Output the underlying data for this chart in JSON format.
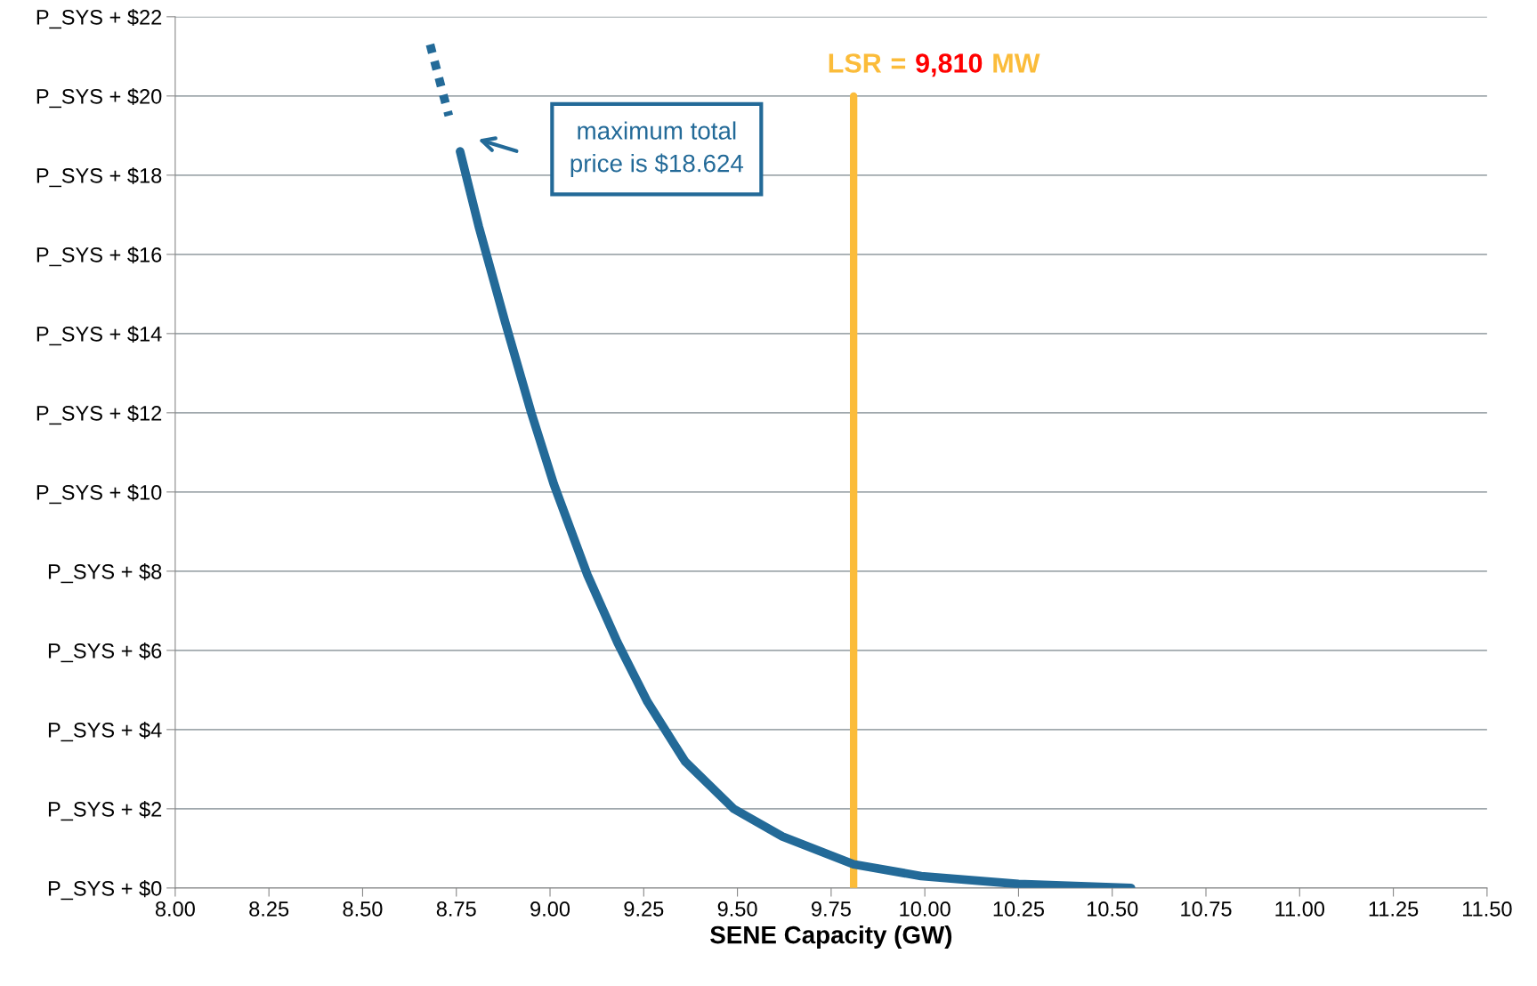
{
  "chart_data": {
    "type": "line",
    "xlabel": "SENE Capacity (GW)",
    "xlim": [
      8.0,
      11.5
    ],
    "xticks": [
      {
        "value": 8.0,
        "label": "8.00"
      },
      {
        "value": 8.25,
        "label": "8.25"
      },
      {
        "value": 8.5,
        "label": "8.50"
      },
      {
        "value": 8.75,
        "label": "8.75"
      },
      {
        "value": 9.0,
        "label": "9.00"
      },
      {
        "value": 9.25,
        "label": "9.25"
      },
      {
        "value": 9.5,
        "label": "9.50"
      },
      {
        "value": 9.75,
        "label": "9.75"
      },
      {
        "value": 10.0,
        "label": "10.00"
      },
      {
        "value": 10.25,
        "label": "10.25"
      },
      {
        "value": 10.5,
        "label": "10.50"
      },
      {
        "value": 10.75,
        "label": "10.75"
      },
      {
        "value": 11.0,
        "label": "11.00"
      },
      {
        "value": 11.25,
        "label": "11.25"
      },
      {
        "value": 11.5,
        "label": "11.50"
      }
    ],
    "ylim": [
      0,
      22
    ],
    "yticks": [
      {
        "value": 0,
        "label": "P_SYS + $0"
      },
      {
        "value": 2,
        "label": "P_SYS + $2"
      },
      {
        "value": 4,
        "label": "P_SYS + $4"
      },
      {
        "value": 6,
        "label": "P_SYS + $6"
      },
      {
        "value": 8,
        "label": "P_SYS + $8"
      },
      {
        "value": 10,
        "label": "P_SYS + $10"
      },
      {
        "value": 12,
        "label": "P_SYS + $12"
      },
      {
        "value": 14,
        "label": "P_SYS + $14"
      },
      {
        "value": 16,
        "label": "P_SYS + $16"
      },
      {
        "value": 18,
        "label": "P_SYS + $18"
      },
      {
        "value": 20,
        "label": "P_SYS + $20"
      },
      {
        "value": 22,
        "label": "P_SYS + $22"
      }
    ],
    "grid": "y",
    "series": [
      {
        "color": "#236a98",
        "line_style": "solid",
        "x": [
          8.76,
          8.81,
          8.88,
          8.95,
          9.01,
          9.1,
          9.18,
          9.26,
          9.36,
          9.49,
          9.62,
          9.81,
          9.99,
          10.25,
          10.55
        ],
        "values": [
          18.6,
          16.7,
          14.3,
          12.0,
          10.2,
          7.9,
          6.2,
          4.7,
          3.2,
          2.0,
          1.3,
          0.6,
          0.3,
          0.1,
          0.0
        ]
      },
      {
        "color": "#236a98",
        "line_style": "dotted",
        "x": [
          8.68,
          8.73
        ],
        "values": [
          21.3,
          19.5
        ]
      }
    ],
    "ref_lines": [
      {
        "axis": "x",
        "value": 9.81,
        "label": "LSR = 9,810 MW",
        "color": "#fbbc3a"
      }
    ],
    "annotations": [
      "maximum total\nprice is $18.624"
    ]
  }
}
